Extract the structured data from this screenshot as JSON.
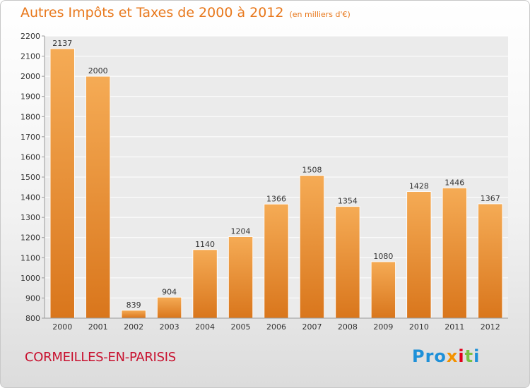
{
  "title": "Autres Impôts et Taxes de 2000 à 2012",
  "unit_note": "(en milliers d'€)",
  "footer_label": "CORMEILLES-EN-PARISIS",
  "logo": {
    "p1": "Pro",
    "p2": "x",
    "p3": "i",
    "p4": "t",
    "p5": "i"
  },
  "colors": {
    "bar": "#f0a04a",
    "bar_dark": "#d8781e",
    "title": "#e8781c",
    "footer": "#c8102e"
  },
  "chart_data": {
    "type": "bar",
    "categories": [
      "2000",
      "2001",
      "2002",
      "2003",
      "2004",
      "2005",
      "2006",
      "2007",
      "2008",
      "2009",
      "2010",
      "2011",
      "2012"
    ],
    "values": [
      2137,
      2000,
      839,
      904,
      1140,
      1204,
      1366,
      1508,
      1354,
      1080,
      1428,
      1446,
      1367
    ],
    "ylim": [
      800,
      2200
    ],
    "yticks": [
      800,
      900,
      1000,
      1100,
      1200,
      1300,
      1400,
      1500,
      1600,
      1700,
      1800,
      1900,
      2000,
      2100,
      2200
    ],
    "grid": true
  }
}
